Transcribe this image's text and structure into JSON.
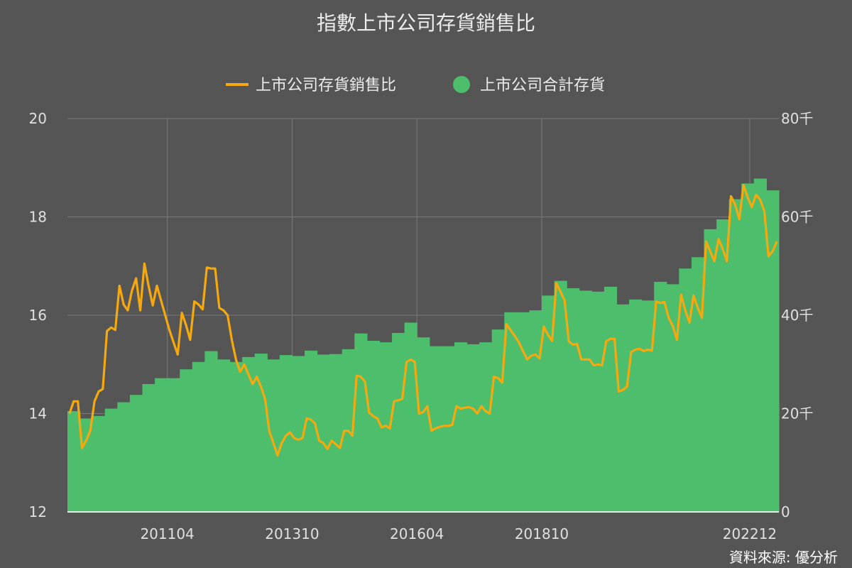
{
  "chart_data": {
    "type": "bar+line",
    "title": "指數上市公司存貨銷售比",
    "source": "資料來源: 優分析",
    "legend": [
      "上市公司存貨銷售比",
      "上市公司合計存貨"
    ],
    "legend_position": "top-center",
    "x_tick_labels": [
      "201104",
      "201310",
      "201604",
      "201810",
      "202212"
    ],
    "y_left": {
      "min": 12,
      "max": 20,
      "ticks": [
        "12",
        "14",
        "16",
        "18",
        "20"
      ]
    },
    "y_right": {
      "min": 0,
      "max": 80,
      "ticks": [
        "0",
        "20千",
        "40千",
        "60千",
        "80千"
      ]
    },
    "grid": true,
    "colors": {
      "bars": "#4cbe6c",
      "line": "#f5a90e",
      "background": "#555555"
    },
    "series": [
      {
        "name": "上市公司合計存貨",
        "type": "bar",
        "axis": "right",
        "unit": "千",
        "start": "200904",
        "step_months": 3,
        "values": [
          20.5,
          19,
          19.5,
          21,
          22.3,
          23.8,
          26,
          27.2,
          27.2,
          29,
          30.5,
          32.7,
          31,
          30.5,
          31.5,
          32.2,
          31,
          31.9,
          31.7,
          32.8,
          32,
          32.1,
          33.1,
          36.3,
          34.8,
          34.5,
          36.4,
          38.5,
          35.5,
          33.7,
          33.7,
          34.5,
          34.1,
          34.5,
          37.1,
          40.6,
          40.6,
          41,
          44,
          47,
          45.5,
          45,
          44.8,
          45.8,
          42.2,
          43.2,
          43,
          46.8,
          46.3,
          49.5,
          51.8,
          57.5,
          59.5,
          63.6,
          66.8,
          67.8,
          65.4
        ]
      },
      {
        "name": "上市公司存貨銷售比",
        "type": "line",
        "axis": "left",
        "start": "200904",
        "step_months": 1,
        "values": [
          14.0,
          14.25,
          14.25,
          13.3,
          13.45,
          13.65,
          14.25,
          14.45,
          14.5,
          15.68,
          15.75,
          15.7,
          16.6,
          16.22,
          16.1,
          16.5,
          16.75,
          16.1,
          17.05,
          16.6,
          16.2,
          16.6,
          16.3,
          16.0,
          15.7,
          15.45,
          15.2,
          16.05,
          15.8,
          15.5,
          16.28,
          16.22,
          16.12,
          16.97,
          16.95,
          16.95,
          16.15,
          16.1,
          16.0,
          15.5,
          15.1,
          14.85,
          15.0,
          14.8,
          14.6,
          14.75,
          14.55,
          14.3,
          13.65,
          13.4,
          13.15,
          13.4,
          13.55,
          13.62,
          13.5,
          13.47,
          13.5,
          13.9,
          13.88,
          13.8,
          13.45,
          13.4,
          13.28,
          13.45,
          13.38,
          13.3,
          13.65,
          13.65,
          13.55,
          14.77,
          14.75,
          14.65,
          14.02,
          13.95,
          13.9,
          13.72,
          13.75,
          13.7,
          14.25,
          14.27,
          14.3,
          15.05,
          15.1,
          15.05,
          14.0,
          14.03,
          14.15,
          13.65,
          13.7,
          13.73,
          13.75,
          13.75,
          13.77,
          14.15,
          14.1,
          14.12,
          14.13,
          14.1,
          14.0,
          14.15,
          14.05,
          14.0,
          14.75,
          14.72,
          14.63,
          15.82,
          15.7,
          15.58,
          15.45,
          15.27,
          15.1,
          15.18,
          15.2,
          15.12,
          15.77,
          15.6,
          15.48,
          16.65,
          16.48,
          16.3,
          15.47,
          15.4,
          15.42,
          15.1,
          15.1,
          15.1,
          14.98,
          15.0,
          14.98,
          15.47,
          15.52,
          15.52,
          14.45,
          14.48,
          14.55,
          15.25,
          15.3,
          15.32,
          15.27,
          15.3,
          15.28,
          16.28,
          16.25,
          16.27,
          15.95,
          15.78,
          15.5,
          16.42,
          16.1,
          15.85,
          16.4,
          16.15,
          15.95,
          17.5,
          17.3,
          17.1,
          17.55,
          17.35,
          17.1,
          18.42,
          18.25,
          17.95,
          18.65,
          18.4,
          18.2,
          18.45,
          18.35,
          18.12,
          17.2,
          17.3,
          17.5
        ]
      }
    ]
  }
}
